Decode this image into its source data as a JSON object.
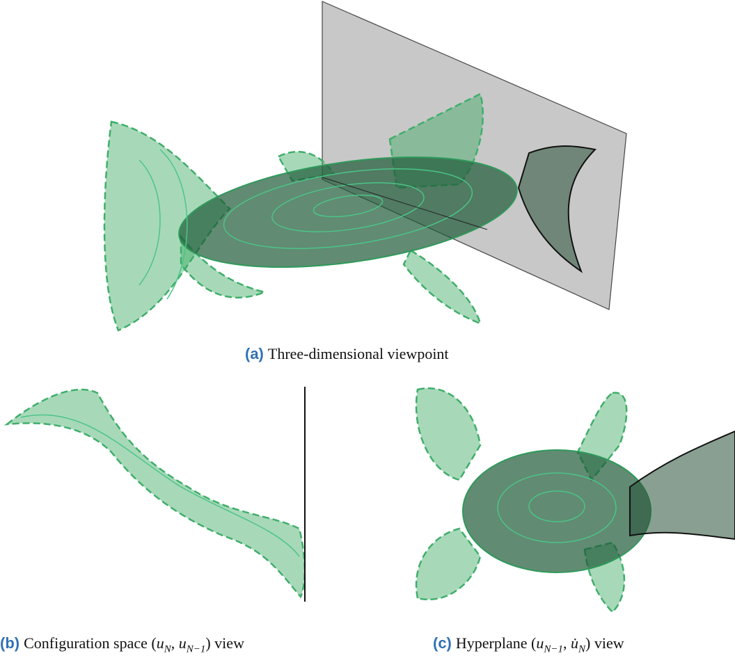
{
  "figure": {
    "a": {
      "label": "(a)",
      "caption": [
        "Three-dimensional viewpoint"
      ]
    },
    "b": {
      "label": "(b)",
      "caption": [
        "Configuration space (",
        {
          "i": "u"
        },
        {
          "sub": "N"
        },
        ", ",
        {
          "i": "u"
        },
        {
          "sub": "N−1"
        },
        ") view"
      ]
    },
    "c": {
      "label": "(c)",
      "caption": [
        "Hyperplane (",
        {
          "i": "u"
        },
        {
          "sub": "N−1"
        },
        ", ",
        {
          "i": "u̇"
        },
        {
          "sub": "N"
        },
        ") view"
      ]
    }
  }
}
